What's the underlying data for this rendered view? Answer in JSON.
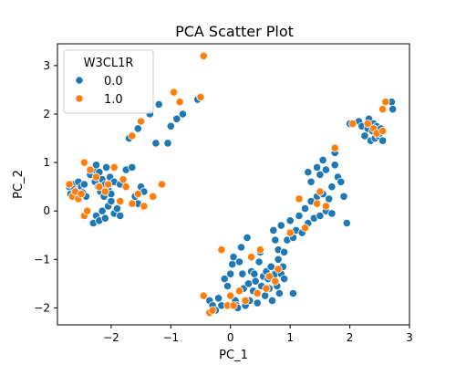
{
  "chart_data": {
    "type": "scatter",
    "title": "PCA Scatter Plot",
    "xlabel": "PC_1",
    "ylabel": "PC_2",
    "xlim": [
      -2.9,
      3.0
    ],
    "ylim": [
      -2.35,
      3.45
    ],
    "xticks": [
      -2,
      -1,
      0,
      1,
      2,
      3
    ],
    "yticks": [
      -2,
      -1,
      0,
      1,
      2,
      3
    ],
    "xtick_labels": [
      "−2",
      "−1",
      "0",
      "1",
      "2",
      "3"
    ],
    "ytick_labels": [
      "−2",
      "−1",
      "0",
      "1",
      "2",
      "3"
    ],
    "grid": false,
    "legend": {
      "title": "W3CL1R",
      "placement": "top-left"
    },
    "series": [
      {
        "name": "0.0",
        "color": "#1f77b4",
        "points": [
          [
            -2.7,
            0.5
          ],
          [
            -2.68,
            0.35
          ],
          [
            -2.65,
            0.55
          ],
          [
            -2.62,
            0.45
          ],
          [
            -2.6,
            0.3
          ],
          [
            -2.58,
            0.42
          ],
          [
            -2.55,
            0.6
          ],
          [
            -2.52,
            0.35
          ],
          [
            -2.5,
            0.5
          ],
          [
            -2.48,
            0.38
          ],
          [
            -2.45,
            0.55
          ],
          [
            -2.42,
            0.3
          ],
          [
            -2.35,
            0.75
          ],
          [
            -2.3,
            0.85
          ],
          [
            -2.27,
            0.6
          ],
          [
            -2.25,
            0.95
          ],
          [
            -2.22,
            0.5
          ],
          [
            -2.2,
            0.8
          ],
          [
            -2.18,
            0.4
          ],
          [
            -2.15,
            0.65
          ],
          [
            -2.12,
            0.3
          ],
          [
            -2.1,
            0.55
          ],
          [
            -2.08,
            0.9
          ],
          [
            -2.05,
            0.45
          ],
          [
            -2.02,
            0.7
          ],
          [
            -2.0,
            0.35
          ],
          [
            -2.3,
            -0.25
          ],
          [
            -2.25,
            -0.1
          ],
          [
            -2.2,
            -0.2
          ],
          [
            -2.15,
            0.0
          ],
          [
            -2.1,
            -0.15
          ],
          [
            -2.05,
            0.1
          ],
          [
            -2.0,
            0.2
          ],
          [
            -1.95,
            -0.05
          ],
          [
            -1.9,
            0.05
          ],
          [
            -1.85,
            -0.1
          ],
          [
            -1.95,
            0.6
          ],
          [
            -1.85,
            0.55
          ],
          [
            -1.75,
            0.85
          ],
          [
            -1.65,
            0.9
          ],
          [
            -1.6,
            0.3
          ],
          [
            -1.55,
            0.15
          ],
          [
            -1.5,
            0.5
          ],
          [
            -1.45,
            0.4
          ],
          [
            -1.7,
            1.5
          ],
          [
            -1.55,
            1.7
          ],
          [
            -1.35,
            2.0
          ],
          [
            -1.2,
            2.2
          ],
          [
            -1.05,
            1.4
          ],
          [
            -0.9,
            1.9
          ],
          [
            -0.8,
            2.0
          ],
          [
            -0.55,
            2.3
          ],
          [
            -1.0,
            1.75
          ],
          [
            -1.25,
            1.4
          ],
          [
            -0.35,
            -1.85
          ],
          [
            -0.3,
            -1.95
          ],
          [
            -0.25,
            -2.05
          ],
          [
            -0.2,
            -1.8
          ],
          [
            -0.15,
            -1.95
          ],
          [
            -0.1,
            -1.4
          ],
          [
            -0.05,
            -1.55
          ],
          [
            0.0,
            -1.3
          ],
          [
            0.03,
            -1.1
          ],
          [
            0.05,
            -0.95
          ],
          [
            0.08,
            -1.85
          ],
          [
            0.1,
            -1.95
          ],
          [
            0.12,
            -2.0
          ],
          [
            0.15,
            -1.05
          ],
          [
            0.18,
            -0.75
          ],
          [
            0.2,
            -1.3
          ],
          [
            0.22,
            -1.6
          ],
          [
            0.25,
            -1.95
          ],
          [
            0.28,
            -0.55
          ],
          [
            0.3,
            -1.5
          ],
          [
            0.32,
            -1.85
          ],
          [
            0.35,
            -1.25
          ],
          [
            0.38,
            -1.65
          ],
          [
            0.4,
            -1.3
          ],
          [
            0.42,
            -1.45
          ],
          [
            0.45,
            -1.9
          ],
          [
            0.48,
            -1.05
          ],
          [
            0.5,
            -0.85
          ],
          [
            0.52,
            -1.55
          ],
          [
            0.55,
            -1.35
          ],
          [
            0.58,
            -1.75
          ],
          [
            0.6,
            -1.25
          ],
          [
            0.63,
            -1.4
          ],
          [
            0.65,
            -1.6
          ],
          [
            0.68,
            -1.15
          ],
          [
            0.7,
            -1.85
          ],
          [
            0.72,
            -0.4
          ],
          [
            0.75,
            -1.3
          ],
          [
            0.78,
            -1.55
          ],
          [
            0.8,
            -1.0
          ],
          [
            0.82,
            -1.7
          ],
          [
            0.85,
            -1.3
          ],
          [
            0.88,
            -1.15
          ],
          [
            0.9,
            -1.4
          ],
          [
            1.05,
            -1.7
          ],
          [
            0.75,
            -0.6
          ],
          [
            0.8,
            -0.8
          ],
          [
            0.85,
            -0.3
          ],
          [
            0.9,
            -0.85
          ],
          [
            0.95,
            -0.6
          ],
          [
            1.0,
            -0.2
          ],
          [
            1.05,
            -0.55
          ],
          [
            1.1,
            -0.4
          ],
          [
            1.15,
            -0.1
          ],
          [
            1.2,
            -0.45
          ],
          [
            1.25,
            0.05
          ],
          [
            1.3,
            -0.25
          ],
          [
            1.35,
            0.2
          ],
          [
            1.4,
            -0.15
          ],
          [
            1.45,
            0.3
          ],
          [
            1.5,
            -0.1
          ],
          [
            1.55,
            0.35
          ],
          [
            1.6,
            0.0
          ],
          [
            1.65,
            0.25
          ],
          [
            1.7,
            -0.05
          ],
          [
            1.3,
            0.8
          ],
          [
            1.35,
            0.6
          ],
          [
            1.45,
            0.9
          ],
          [
            1.5,
            0.75
          ],
          [
            1.55,
            0.35
          ],
          [
            1.6,
            0.85
          ],
          [
            1.7,
            0.5
          ],
          [
            1.75,
            0.95
          ],
          [
            1.8,
            0.7
          ],
          [
            1.85,
            0.6
          ],
          [
            1.9,
            0.3
          ],
          [
            1.95,
            -0.25
          ],
          [
            1.55,
            1.05
          ],
          [
            1.75,
            1.2
          ],
          [
            2.0,
            1.8
          ],
          [
            2.15,
            1.85
          ],
          [
            2.2,
            1.75
          ],
          [
            2.25,
            1.55
          ],
          [
            2.3,
            1.7
          ],
          [
            2.32,
            1.9
          ],
          [
            2.35,
            1.45
          ],
          [
            2.38,
            1.65
          ],
          [
            2.4,
            1.8
          ],
          [
            2.42,
            1.5
          ],
          [
            2.45,
            1.75
          ],
          [
            2.48,
            1.55
          ],
          [
            2.5,
            1.6
          ],
          [
            2.52,
            1.7
          ],
          [
            2.55,
            1.45
          ],
          [
            2.7,
            2.25
          ],
          [
            2.72,
            2.1
          ]
        ]
      },
      {
        "name": "1.0",
        "color": "#ff7f0e",
        "points": [
          [
            -2.7,
            0.55
          ],
          [
            -2.65,
            0.3
          ],
          [
            -2.6,
            0.4
          ],
          [
            -2.55,
            0.25
          ],
          [
            -2.5,
            0.35
          ],
          [
            -2.45,
            -0.1
          ],
          [
            -2.4,
            0.0
          ],
          [
            -2.45,
            1.0
          ],
          [
            -2.35,
            0.85
          ],
          [
            -2.25,
            0.7
          ],
          [
            -2.2,
            0.5
          ],
          [
            -2.1,
            0.4
          ],
          [
            -2.05,
            0.55
          ],
          [
            -1.95,
            0.9
          ],
          [
            -1.85,
            0.2
          ],
          [
            -1.8,
            0.65
          ],
          [
            -1.75,
            0.5
          ],
          [
            -1.65,
            0.15
          ],
          [
            -1.55,
            0.35
          ],
          [
            -1.45,
            0.1
          ],
          [
            -1.3,
            0.3
          ],
          [
            -1.15,
            0.55
          ],
          [
            -1.65,
            1.55
          ],
          [
            -1.5,
            1.85
          ],
          [
            -0.95,
            2.45
          ],
          [
            -0.85,
            2.25
          ],
          [
            -0.5,
            2.35
          ],
          [
            -0.45,
            3.2
          ],
          [
            -0.45,
            -1.75
          ],
          [
            -0.35,
            -2.1
          ],
          [
            -0.3,
            -2.05
          ],
          [
            -0.15,
            -0.8
          ],
          [
            -0.05,
            -1.95
          ],
          [
            0.0,
            -1.75
          ],
          [
            0.05,
            -1.95
          ],
          [
            0.15,
            -1.65
          ],
          [
            0.25,
            -1.85
          ],
          [
            0.35,
            -0.95
          ],
          [
            0.45,
            -1.7
          ],
          [
            0.5,
            -0.8
          ],
          [
            0.6,
            -1.6
          ],
          [
            0.65,
            -1.35
          ],
          [
            0.75,
            -1.45
          ],
          [
            0.8,
            -1.2
          ],
          [
            1.0,
            -0.45
          ],
          [
            1.15,
            0.25
          ],
          [
            1.25,
            -0.35
          ],
          [
            1.45,
            0.15
          ],
          [
            1.5,
            0.4
          ],
          [
            1.6,
            0.1
          ],
          [
            1.75,
            1.3
          ],
          [
            2.05,
            1.8
          ],
          [
            2.3,
            1.8
          ],
          [
            2.4,
            1.7
          ],
          [
            2.45,
            1.6
          ],
          [
            2.55,
            1.65
          ],
          [
            2.55,
            2.1
          ],
          [
            2.6,
            2.25
          ]
        ]
      }
    ]
  }
}
